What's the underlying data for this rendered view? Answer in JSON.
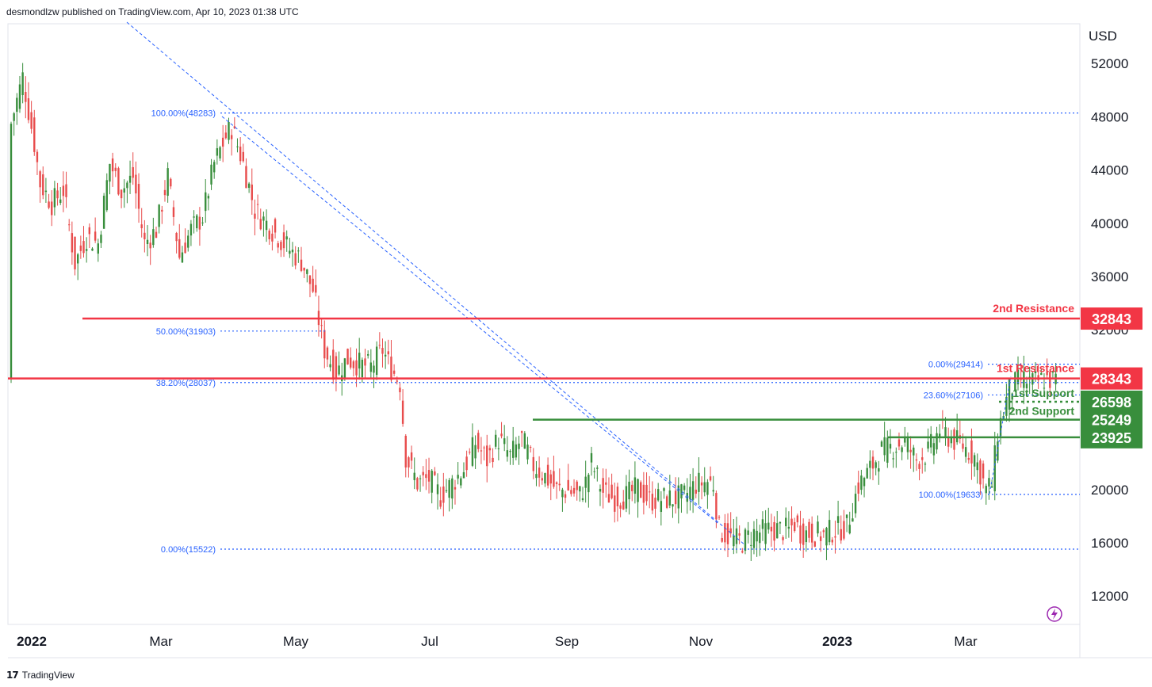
{
  "header": {
    "publisher": "desmondlzw published on TradingView.com, Apr 10, 2023 01:38 UTC"
  },
  "footer": {
    "brand": "TradingView",
    "logo_icon": "tradingview-logo-icon"
  },
  "chart_data": {
    "type": "candlestick",
    "currency": "USD",
    "y_ticks": [
      "52000",
      "48000",
      "44000",
      "40000",
      "36000",
      "32000",
      "20000",
      "16000",
      "12000"
    ],
    "x_ticks": [
      "2022",
      "Mar",
      "May",
      "Jul",
      "Sep",
      "Nov",
      "2023",
      "Mar"
    ],
    "ylim": [
      10000,
      54500
    ],
    "colors": {
      "up": "#388e3c",
      "down": "#e84c4c",
      "resistance": "#f23645",
      "support": "#388e3c",
      "fib": "#2962ff"
    },
    "fib_levels": [
      {
        "label": "100.00%(48283)",
        "value": 48283
      },
      {
        "label": "50.00%(31903)",
        "value": 31903
      },
      {
        "label": "38.20%(28037)",
        "value": 28037
      },
      {
        "label": "0.00%(15522)",
        "value": 15522
      },
      {
        "label": "0.00%(29414)",
        "value": 29414
      },
      {
        "label": "23.60%(27106)",
        "value": 27106
      },
      {
        "label": "100.00%(19633)",
        "value": 19633
      }
    ],
    "levels": [
      {
        "name": "2nd Resistance",
        "value": 32843,
        "badge": "32843",
        "kind": "resistance"
      },
      {
        "name": "1st Resistance",
        "value": 28343,
        "badge": "28343",
        "kind": "resistance"
      },
      {
        "name": "1st Support",
        "value": 26598,
        "badge": "26598",
        "kind": "support"
      },
      {
        "name": "2nd Support",
        "value": 25249,
        "badge": "25249",
        "kind": "support"
      },
      {
        "name": "",
        "value": 23925,
        "badge": "23925",
        "kind": "support"
      }
    ],
    "close_series": [
      [
        0,
        47500
      ],
      [
        4,
        51000
      ],
      [
        8,
        46000
      ],
      [
        10,
        43000
      ],
      [
        14,
        41500
      ],
      [
        18,
        42500
      ],
      [
        22,
        37000
      ],
      [
        26,
        39000
      ],
      [
        30,
        38500
      ],
      [
        34,
        44500
      ],
      [
        38,
        42500
      ],
      [
        42,
        43500
      ],
      [
        46,
        38500
      ],
      [
        50,
        39500
      ],
      [
        54,
        43500
      ],
      [
        58,
        37500
      ],
      [
        62,
        39500
      ],
      [
        66,
        40500
      ],
      [
        70,
        44500
      ],
      [
        74,
        46500
      ],
      [
        76,
        47200
      ],
      [
        80,
        44500
      ],
      [
        84,
        41000
      ],
      [
        88,
        40000
      ],
      [
        92,
        39000
      ],
      [
        96,
        38000
      ],
      [
        100,
        37200
      ],
      [
        104,
        35000
      ],
      [
        108,
        30500
      ],
      [
        112,
        28800
      ],
      [
        116,
        29800
      ],
      [
        120,
        29400
      ],
      [
        124,
        29200
      ],
      [
        128,
        30500
      ],
      [
        130,
        29500
      ],
      [
        134,
        28000
      ],
      [
        136,
        22500
      ],
      [
        140,
        20500
      ],
      [
        144,
        20800
      ],
      [
        148,
        19500
      ],
      [
        152,
        20500
      ],
      [
        156,
        21500
      ],
      [
        160,
        23500
      ],
      [
        164,
        22200
      ],
      [
        168,
        23800
      ],
      [
        172,
        22500
      ],
      [
        176,
        23800
      ],
      [
        180,
        21800
      ],
      [
        184,
        21000
      ],
      [
        188,
        20000
      ],
      [
        192,
        19900
      ],
      [
        196,
        19600
      ],
      [
        198,
        20500
      ],
      [
        200,
        22000
      ],
      [
        204,
        19800
      ],
      [
        208,
        19300
      ],
      [
        212,
        19500
      ],
      [
        216,
        20100
      ],
      [
        220,
        19200
      ],
      [
        224,
        19300
      ],
      [
        228,
        19300
      ],
      [
        232,
        19500
      ],
      [
        236,
        20400
      ],
      [
        240,
        20600
      ],
      [
        242,
        20400
      ],
      [
        244,
        17000
      ],
      [
        248,
        16300
      ],
      [
        252,
        16100
      ],
      [
        256,
        16700
      ],
      [
        260,
        16900
      ],
      [
        264,
        17000
      ],
      [
        268,
        16900
      ],
      [
        270,
        17500
      ],
      [
        272,
        16800
      ],
      [
        276,
        16700
      ],
      [
        280,
        16600
      ],
      [
        284,
        17000
      ],
      [
        288,
        17200
      ],
      [
        292,
        20300
      ],
      [
        296,
        21500
      ],
      [
        300,
        22900
      ],
      [
        304,
        23200
      ],
      [
        308,
        23600
      ],
      [
        312,
        22200
      ],
      [
        316,
        22800
      ],
      [
        320,
        24500
      ],
      [
        324,
        23800
      ],
      [
        328,
        23300
      ],
      [
        332,
        22500
      ],
      [
        336,
        20000
      ],
      [
        338,
        20400
      ],
      [
        340,
        24300
      ],
      [
        344,
        27500
      ],
      [
        348,
        28300
      ],
      [
        352,
        28000
      ],
      [
        356,
        28300
      ],
      [
        360,
        28200
      ]
    ],
    "candle_range": {
      "high_low_spread": 1400
    }
  }
}
